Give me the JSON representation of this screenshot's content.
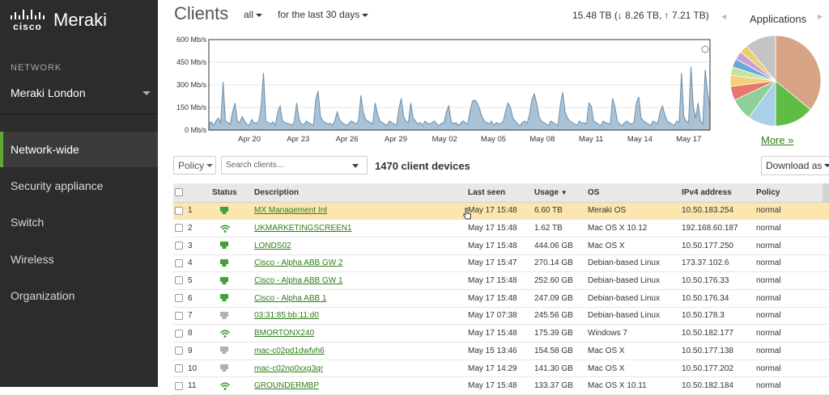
{
  "brand": {
    "cisco": "cisco",
    "product": "Meraki"
  },
  "sidebar": {
    "network_label": "NETWORK",
    "network_name": "Meraki London",
    "items": [
      {
        "label": "Network-wide",
        "active": true
      },
      {
        "label": "Security appliance",
        "active": false
      },
      {
        "label": "Switch",
        "active": false
      },
      {
        "label": "Wireless",
        "active": false
      },
      {
        "label": "Organization",
        "active": false
      }
    ]
  },
  "header": {
    "title": "Clients",
    "filter_all": "all",
    "filter_time": "for the last 30 days",
    "totals": "15.48 TB (↓ 8.26 TB, ↑ 7.21 TB)",
    "apps_title": "Applications",
    "more_link": "More »"
  },
  "chart_data": {
    "type": "area",
    "title": "",
    "ylabel": "",
    "xlabel": "",
    "ylim": [
      0,
      600
    ],
    "y_ticks": [
      "0 Mb/s",
      "150 Mb/s",
      "300 Mb/s",
      "450 Mb/s",
      "600 Mb/s"
    ],
    "x_ticks": [
      "Apr 20",
      "Apr 23",
      "Apr 26",
      "Apr 29",
      "May 02",
      "May 05",
      "May 08",
      "May 11",
      "May 14",
      "May 17"
    ],
    "x_range_days": [
      0,
      30
    ],
    "series": [
      {
        "values": [
          40,
          55,
          30,
          60,
          80,
          45,
          320,
          60,
          50,
          40,
          120,
          180,
          60,
          50,
          90,
          60,
          40,
          30,
          70,
          50,
          45,
          60,
          150,
          380,
          60,
          50,
          40,
          55,
          30,
          120,
          160,
          60,
          50,
          45,
          40,
          30,
          60,
          180,
          70,
          40,
          35,
          60,
          50,
          40,
          30,
          200,
          260,
          90,
          60,
          50,
          40,
          45,
          30,
          60,
          120,
          70,
          50,
          40,
          30,
          45,
          60,
          50,
          40,
          60,
          230,
          120,
          70,
          60,
          50,
          40,
          180,
          110,
          60,
          50,
          40,
          30,
          60,
          50,
          40,
          30,
          140,
          210,
          90,
          60,
          50,
          180,
          80,
          60,
          40,
          50,
          30,
          60,
          45,
          40,
          50,
          60,
          40,
          30,
          45,
          50,
          120,
          160,
          60,
          40,
          50,
          30,
          45,
          60,
          50,
          40,
          130,
          190,
          200,
          180,
          140,
          90,
          60,
          50,
          40,
          60,
          30,
          50,
          40,
          45,
          60,
          130,
          180,
          150,
          80,
          60,
          40,
          30,
          50,
          60,
          45,
          100,
          200,
          240,
          180,
          90,
          60,
          50,
          40,
          30,
          60,
          50,
          40,
          30,
          170,
          250,
          120,
          80,
          60,
          50,
          40,
          30,
          60,
          45,
          50,
          40,
          180,
          160,
          60,
          50,
          40,
          30,
          60,
          50,
          45,
          40,
          210,
          150,
          60,
          40,
          30,
          50,
          60,
          45,
          40,
          50,
          180,
          220,
          80,
          60,
          50,
          40,
          30,
          60,
          50,
          45,
          120,
          160,
          100,
          60,
          50,
          40,
          30,
          60,
          50,
          380,
          90,
          60,
          50,
          420,
          150,
          80,
          180,
          60,
          40,
          400,
          250,
          150
        ]
      }
    ],
    "legend": "none",
    "grid": true
  },
  "applications_pie": {
    "slices": [
      {
        "value": 36,
        "color": "#d6a384"
      },
      {
        "value": 14,
        "color": "#5fbd45"
      },
      {
        "value": 10,
        "color": "#a8d0e8"
      },
      {
        "value": 8,
        "color": "#8fd09a"
      },
      {
        "value": 5,
        "color": "#e8766c"
      },
      {
        "value": 4,
        "color": "#f4d07a"
      },
      {
        "value": 3,
        "color": "#c6e59c"
      },
      {
        "value": 3,
        "color": "#6aa8d8"
      },
      {
        "value": 3,
        "color": "#c9a0d6"
      },
      {
        "value": 3,
        "color": "#e7d16e"
      },
      {
        "value": 11,
        "color": "#c4c4c4"
      }
    ]
  },
  "toolbar": {
    "policy_label": "Policy",
    "search_placeholder": "Search clients...",
    "device_count": "1470 client devices",
    "download_label": "Download as"
  },
  "table": {
    "columns": [
      "Status",
      "Description",
      "Last seen",
      "Usage",
      "OS",
      "IPv4 address",
      "Policy"
    ],
    "sort_indicator": "▼",
    "add_column": "+",
    "rows": [
      {
        "num": "1",
        "status": "wired",
        "status_color": "#3fa333",
        "description": "MX Management Int",
        "last_seen": "May 17 15:48",
        "usage": "6.60 TB",
        "os": "Meraki OS",
        "ip": "10.50.183.254",
        "policy": "normal"
      },
      {
        "num": "2",
        "status": "wifi",
        "status_color": "#3fa333",
        "description": "UKMARKETINGSCREEN1",
        "last_seen": "May 17 15:48",
        "usage": "1.62 TB",
        "os": "Mac OS X 10.12",
        "ip": "192.168.60.187",
        "policy": "normal"
      },
      {
        "num": "3",
        "status": "wired",
        "status_color": "#3fa333",
        "description": "LONDS02",
        "last_seen": "May 17 15:48",
        "usage": "444.06 GB",
        "os": "Mac OS X",
        "ip": "10.50.177.250",
        "policy": "normal"
      },
      {
        "num": "4",
        "status": "wired",
        "status_color": "#3fa333",
        "description": "Cisco - Alpha ABB GW 2",
        "last_seen": "May 17 15:47",
        "usage": "270.14 GB",
        "os": "Debian-based Linux",
        "ip": "173.37.102.6",
        "policy": "normal"
      },
      {
        "num": "5",
        "status": "wired",
        "status_color": "#3fa333",
        "description": "Cisco - Alpha ABB GW 1",
        "last_seen": "May 17 15:48",
        "usage": "252.60 GB",
        "os": "Debian-based Linux",
        "ip": "10.50.176.33",
        "policy": "normal"
      },
      {
        "num": "6",
        "status": "wired",
        "status_color": "#3fa333",
        "description": "Cisco - Alpha ABB 1",
        "last_seen": "May 17 15:48",
        "usage": "247.09 GB",
        "os": "Debian-based Linux",
        "ip": "10.50.176.34",
        "policy": "normal"
      },
      {
        "num": "7",
        "status": "wired",
        "status_color": "#b0b0b0",
        "description": "03:31:85:bb:11:d0",
        "last_seen": "May 17 07:38",
        "usage": "245.56 GB",
        "os": "Debian-based Linux",
        "ip": "10.50.178.3",
        "policy": "normal"
      },
      {
        "num": "8",
        "status": "wifi",
        "status_color": "#3fa333",
        "description": "BMORTONX240",
        "last_seen": "May 17 15:48",
        "usage": "175.39 GB",
        "os": "Windows 7",
        "ip": "10.50.182.177",
        "policy": "normal"
      },
      {
        "num": "9",
        "status": "wired",
        "status_color": "#b0b0b0",
        "description": "mac-c02pd1dwfvh6",
        "last_seen": "May 15 13:46",
        "usage": "154.58 GB",
        "os": "Mac OS X",
        "ip": "10.50.177.138",
        "policy": "normal"
      },
      {
        "num": "10",
        "status": "wired",
        "status_color": "#b0b0b0",
        "description": "mac-c02np0xxg3qr",
        "last_seen": "May 17 14:29",
        "usage": "141.30 GB",
        "os": "Mac OS X",
        "ip": "10.50.177.202",
        "policy": "normal"
      },
      {
        "num": "11",
        "status": "wifi",
        "status_color": "#3fa333",
        "description": "GROUNDERMBP",
        "last_seen": "May 17 15:48",
        "usage": "133.37 GB",
        "os": "Mac OS X 10.11",
        "ip": "10.50.182.184",
        "policy": "normal"
      }
    ]
  },
  "colors": {
    "accent_green": "#5fa836",
    "link_green": "#2e7d18",
    "chart_fill": "#a9c2d6",
    "chart_line": "#6b8ea9",
    "highlight_row": "#fbe6b0"
  }
}
